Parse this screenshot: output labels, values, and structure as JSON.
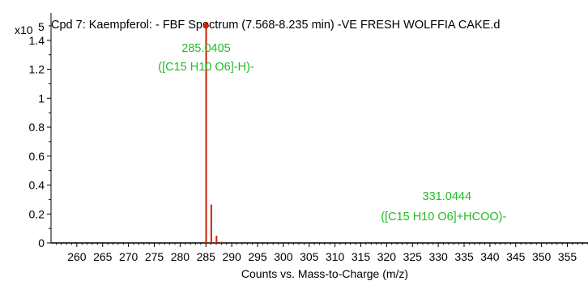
{
  "chart_data": {
    "type": "bar",
    "title": "Cpd 7: Kaempferol: - FBF Spectrum (7.568-8.235 min) -VE FRESH WOLFFIA CAKE.d",
    "xlabel": "Counts vs. Mass-to-Charge (m/z)",
    "ylabel": "",
    "y_multiplier_label": "x10",
    "y_multiplier_exponent": "5",
    "xlim": [
      255,
      359
    ],
    "ylim": [
      0,
      1.55
    ],
    "x_ticks": [
      260,
      265,
      270,
      275,
      280,
      285,
      290,
      295,
      300,
      305,
      310,
      315,
      320,
      325,
      330,
      335,
      340,
      345,
      350,
      355
    ],
    "x_tick_labels": [
      "260",
      "265",
      "270",
      "275",
      "280",
      "285",
      "290",
      "295",
      "300",
      "305",
      "310",
      "315",
      "320",
      "325",
      "330",
      "335",
      "340",
      "345",
      "350",
      "355"
    ],
    "y_ticks": [
      0,
      0.2,
      0.4,
      0.6,
      0.8,
      1,
      1.2,
      1.4
    ],
    "y_tick_labels": [
      "0",
      "0.2",
      "0.4",
      "0.6",
      "0.8",
      "1",
      "1.2",
      "1.4"
    ],
    "grid": false,
    "series": [
      {
        "color": "#cc2200",
        "peaks": [
          {
            "x": 285.0405,
            "y": 1.5
          },
          {
            "x": 286.04,
            "y": 0.265
          },
          {
            "x": 287.05,
            "y": 0.05
          },
          {
            "x": 288.05,
            "y": 0.008
          }
        ]
      }
    ],
    "annotations": [
      {
        "mz": "285.0405",
        "formula": "([C15 H10 O6]-H)-",
        "x": 285.0405,
        "y": 1.5,
        "color": "#22bb22",
        "marker": "diamond"
      },
      {
        "mz": "331.0444",
        "formula": "([C15 H10 O6]+HCOO)-",
        "x": 331.0444,
        "y": 0.0,
        "color": "#22bb22",
        "marker": "none"
      }
    ]
  }
}
